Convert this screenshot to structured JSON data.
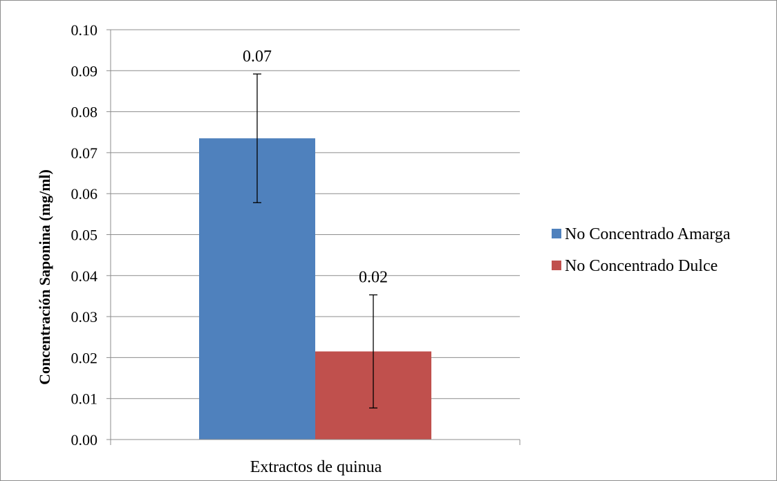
{
  "chart_data": {
    "type": "bar",
    "categories": [
      "Extractos de quinua"
    ],
    "series": [
      {
        "name": "No Concentrado Amarga",
        "values": [
          0.0735
        ],
        "error": [
          0.0157
        ],
        "data_label": "0.07",
        "color": "#4f81bd"
      },
      {
        "name": "No Concentrado Dulce",
        "values": [
          0.0215
        ],
        "error": [
          0.0138
        ],
        "data_label": "0.02",
        "color": "#c0504d"
      }
    ],
    "xlabel": "Extractos de quinua",
    "ylabel": "Concentración Saponina (mg/ml)",
    "ylim": [
      0,
      0.1
    ],
    "yticks": [
      "0.00",
      "0.01",
      "0.02",
      "0.03",
      "0.04",
      "0.05",
      "0.06",
      "0.07",
      "0.08",
      "0.09",
      "0.10"
    ],
    "grid": true,
    "legend": "right"
  }
}
